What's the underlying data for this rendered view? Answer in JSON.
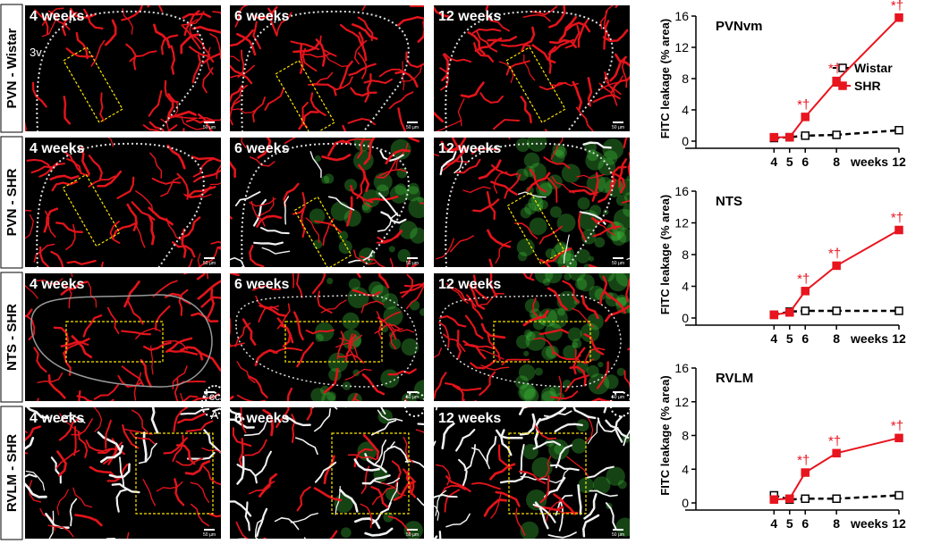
{
  "figure": {
    "rows": [
      {
        "label": "PVN - Wistar",
        "panels": [
          "4 weeks",
          "6 weeks",
          "12 weeks"
        ]
      },
      {
        "label": "PVN - SHR",
        "panels": [
          "4 weeks",
          "6 weeks",
          "12 weeks"
        ]
      },
      {
        "label": "NTS - SHR",
        "panels": [
          "4 weeks",
          "6 weeks",
          "12 weeks"
        ]
      },
      {
        "label": "RVLM - SHR",
        "panels": [
          "4 weeks",
          "6 weeks",
          "12 weeks"
        ]
      }
    ],
    "annotations": [
      "3v",
      "cc",
      "A"
    ],
    "scale_bar": "50 µm"
  },
  "chart_data": [
    {
      "type": "line",
      "title": "PVNvm",
      "x_label": "weeks",
      "y_label": "FITC leakage (% area)",
      "x": [
        4,
        5,
        6,
        8,
        12
      ],
      "xlim": [
        -1,
        12
      ],
      "xticks": [
        4,
        5,
        6,
        8,
        12
      ],
      "ylim": [
        0,
        16
      ],
      "yticks": [
        0,
        4,
        8,
        12,
        16
      ],
      "legend": "upper right",
      "series": [
        {
          "name": "Wistar",
          "color": "#000000",
          "values": [
            0.4,
            0.5,
            0.7,
            0.8,
            1.4
          ]
        },
        {
          "name": "SHR",
          "color": "#e8141e",
          "values": [
            0.5,
            0.5,
            3.1,
            7.7,
            15.8
          ],
          "point_labels": [
            null,
            null,
            "*†",
            "*†",
            "*†"
          ]
        }
      ]
    },
    {
      "type": "line",
      "title": "NTS",
      "x_label": "weeks",
      "y_label": "FITC leakage (% area)",
      "x": [
        4,
        5,
        6,
        8,
        12
      ],
      "xlim": [
        -1,
        12
      ],
      "xticks": [
        4,
        5,
        6,
        8,
        12
      ],
      "ylim": [
        0,
        16
      ],
      "yticks": [
        0,
        4,
        8,
        12,
        16
      ],
      "series": [
        {
          "name": "Wistar",
          "color": "#000000",
          "values": [
            0.4,
            0.8,
            0.9,
            0.9,
            0.9
          ]
        },
        {
          "name": "SHR",
          "color": "#e8141e",
          "values": [
            0.4,
            0.7,
            3.4,
            6.6,
            11.1
          ],
          "point_labels": [
            null,
            null,
            "*†",
            "*†",
            "*†"
          ]
        }
      ]
    },
    {
      "type": "line",
      "title": "RVLM",
      "x_label": "weeks",
      "y_label": "FITC leakage (% area)",
      "x": [
        4,
        5,
        6,
        8,
        12
      ],
      "xlim": [
        -1,
        12
      ],
      "xticks": [
        4,
        5,
        6,
        8,
        12
      ],
      "ylim": [
        0,
        16
      ],
      "yticks": [
        0,
        4,
        8,
        12,
        16
      ],
      "series": [
        {
          "name": "Wistar",
          "color": "#000000",
          "values": [
            0.9,
            0.4,
            0.5,
            0.5,
            0.9
          ]
        },
        {
          "name": "SHR",
          "color": "#e8141e",
          "values": [
            0.4,
            0.5,
            3.6,
            5.9,
            7.7
          ],
          "point_labels": [
            null,
            null,
            "*†",
            "*†",
            "*†"
          ]
        }
      ]
    }
  ]
}
